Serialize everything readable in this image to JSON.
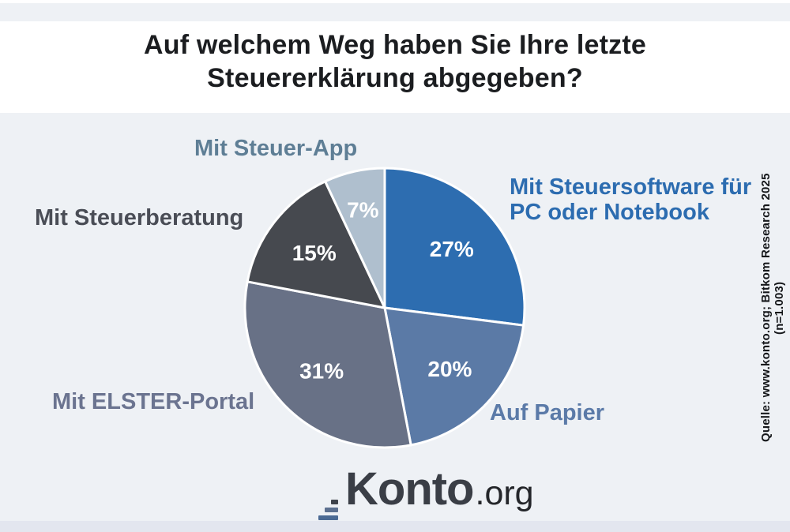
{
  "header": {
    "title_line1": "Auf welchem Weg haben Sie Ihre letzte",
    "title_line2": "Steuererklärung abgegeben?"
  },
  "source": {
    "text": "Quelle: www.konto.org; Bitkom Research 2025 (n=1.003)"
  },
  "logo": {
    "name": "Konto.org",
    "text_main": "Konto",
    "text_suffix": ".org",
    "bar_colors": [
      "#3e434b",
      "#5c7090",
      "#4a6a94",
      "#2e6cb2"
    ]
  },
  "colors": {
    "background": "#eef1f5",
    "title_band": "#ffffff",
    "bottom_strip": "#e3e6ef",
    "pie_border": "#ffffff",
    "value_label_text": "#ffffff"
  },
  "chart_data": {
    "type": "pie",
    "title": "Auf welchem Weg haben Sie Ihre letzte Steuererklärung abgegeben?",
    "unit": "%",
    "start_angle_deg": 0,
    "direction": "clockwise",
    "legend_position": "callout labels around pie",
    "categories": [
      "Mit Steuersoftware für PC oder Notebook",
      "Auf Papier",
      "Mit ELSTER-Portal",
      "Mit Steuerberatung",
      "Mit Steuer-App"
    ],
    "values": [
      27,
      20,
      31,
      15,
      7
    ],
    "slices": [
      {
        "label": "Mit Steuersoftware für PC oder Notebook",
        "value": 27,
        "value_label": "27%",
        "color": "#2d6db0",
        "callout_color": "#2c6cb0"
      },
      {
        "label": "Auf Papier",
        "value": 20,
        "value_label": "20%",
        "color": "#5b7aa6",
        "callout_color": "#5b7aa8"
      },
      {
        "label": "Mit ELSTER-Portal",
        "value": 31,
        "value_label": "31%",
        "color": "#687186",
        "callout_color": "#6b7490"
      },
      {
        "label": "Mit Steuerberatung",
        "value": 15,
        "value_label": "15%",
        "color": "#46494f",
        "callout_color": "#4a4d56"
      },
      {
        "label": "Mit Steuer-App",
        "value": 7,
        "value_label": "7%",
        "color": "#afbfce",
        "callout_color": "#5e7e95"
      }
    ]
  }
}
